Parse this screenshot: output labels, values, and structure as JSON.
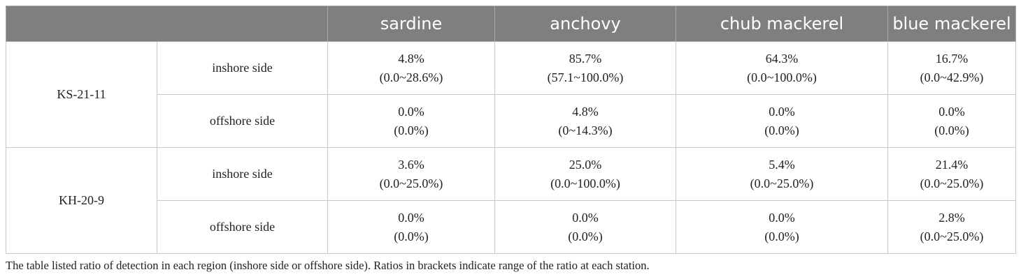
{
  "table": {
    "headers": [
      "",
      "sardine",
      "anchovy",
      "chub mackerel",
      "blue mackerel"
    ],
    "groups": [
      {
        "station": "KS-21-11",
        "rows": [
          {
            "region": "inshore side",
            "cells": [
              {
                "ratio": "4.8%",
                "range": "(0.0~28.6%)"
              },
              {
                "ratio": "85.7%",
                "range": "(57.1~100.0%)"
              },
              {
                "ratio": "64.3%",
                "range": "(0.0~100.0%)"
              },
              {
                "ratio": "16.7%",
                "range": "(0.0~42.9%)"
              }
            ]
          },
          {
            "region": "offshore side",
            "cells": [
              {
                "ratio": "0.0%",
                "range": "(0.0%)"
              },
              {
                "ratio": "4.8%",
                "range": "(0~14.3%)"
              },
              {
                "ratio": "0.0%",
                "range": "(0.0%)"
              },
              {
                "ratio": "0.0%",
                "range": "(0.0%)"
              }
            ]
          }
        ]
      },
      {
        "station": "KH-20-9",
        "rows": [
          {
            "region": "inshore side",
            "cells": [
              {
                "ratio": "3.6%",
                "range": "(0.0~25.0%)"
              },
              {
                "ratio": "25.0%",
                "range": "(0.0~100.0%)"
              },
              {
                "ratio": "5.4%",
                "range": "(0.0~25.0%)"
              },
              {
                "ratio": "21.4%",
                "range": "(0.0~25.0%)"
              }
            ]
          },
          {
            "region": "offshore side",
            "cells": [
              {
                "ratio": "0.0%",
                "range": "(0.0%)"
              },
              {
                "ratio": "0.0%",
                "range": "(0.0%)"
              },
              {
                "ratio": "0.0%",
                "range": "(0.0%)"
              },
              {
                "ratio": "2.8%",
                "range": "(0.0~25.0%)"
              }
            ]
          }
        ]
      }
    ]
  },
  "caption": "The table listed ratio of detection in each region (inshore side or offshore side). Ratios in brackets indicate range of the ratio at each station."
}
